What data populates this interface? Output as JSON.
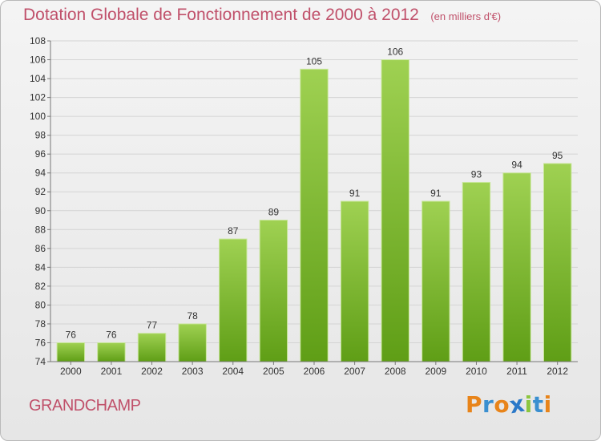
{
  "header": {
    "title": "Dotation Globale de Fonctionnement de 2000 à 2012",
    "unit": "(en milliers d'€)"
  },
  "footer": {
    "commune": "GRANDCHAMP",
    "brand_letters": [
      "P",
      "r",
      "o",
      "x",
      "i",
      "t",
      "i"
    ],
    "brand_colors": [
      "#e8841a",
      "#3a8fd0",
      "#e8841a",
      "#2a78c8",
      "#8cc63f",
      "#3a8fd0",
      "#e8841a"
    ]
  },
  "colors": {
    "bar_top": "#9fd152",
    "bar_bottom": "#5f9e16",
    "title": "#c0506a",
    "grid": "#d4d4d4"
  },
  "chart_data": {
    "type": "bar",
    "title": "Dotation Globale de Fonctionnement de 2000 à 2012",
    "subtitle": "(en milliers d'€)",
    "categories": [
      "2000",
      "2001",
      "2002",
      "2003",
      "2004",
      "2005",
      "2006",
      "2007",
      "2008",
      "2009",
      "2010",
      "2011",
      "2012"
    ],
    "values": [
      76,
      76,
      77,
      78,
      87,
      89,
      105,
      91,
      106,
      91,
      93,
      94,
      95
    ],
    "ylim": [
      74,
      108
    ],
    "ytick_step": 2,
    "grid": true,
    "data_labels": true
  }
}
